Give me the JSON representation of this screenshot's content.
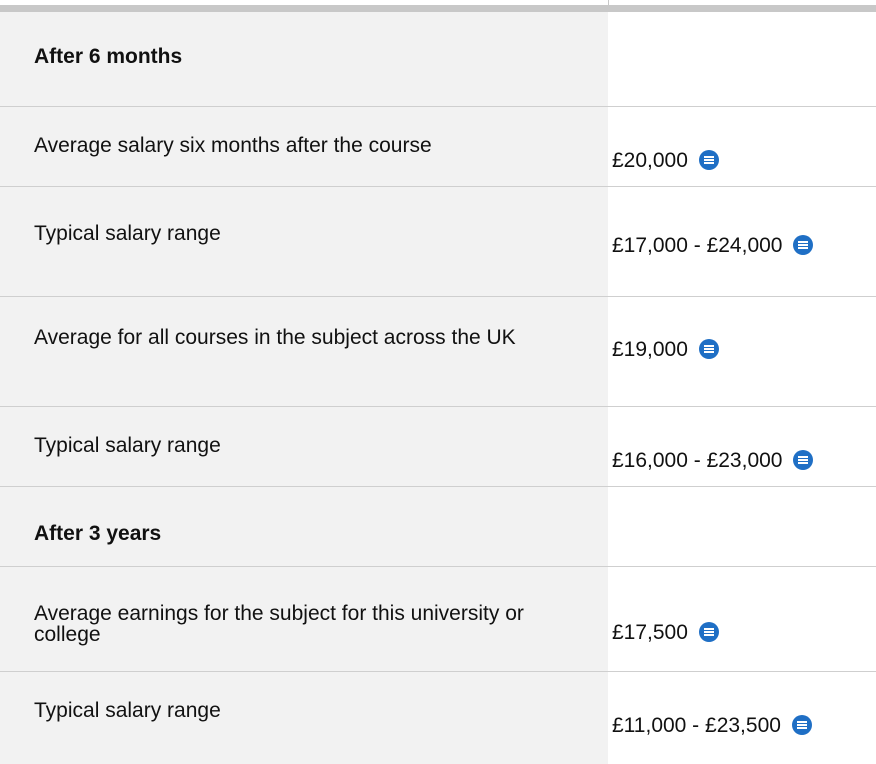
{
  "sections": [
    {
      "title": "After 6 months",
      "rows": [
        {
          "label": "Average salary six months after the course",
          "value": "£20,000"
        },
        {
          "label": "Typical salary range",
          "value": "£17,000 - £24,000"
        },
        {
          "label": "Average for all courses in the subject across the UK",
          "value": "£19,000"
        },
        {
          "label": "Typical salary range",
          "value": "£16,000 - £23,000"
        }
      ]
    },
    {
      "title": "After 3 years",
      "rows": [
        {
          "label": "Average earnings for the subject for this university or college",
          "value": "£17,500"
        },
        {
          "label": "Typical salary range",
          "value": "£11,000 - £23,500"
        }
      ]
    }
  ]
}
